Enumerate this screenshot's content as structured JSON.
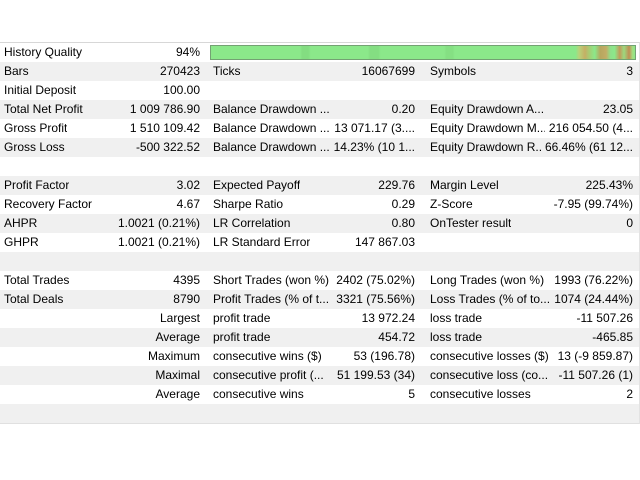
{
  "app": "strategy-tester-backtest-report",
  "accent_colors": {
    "row_stripe": "#f0f0f0",
    "row_white": "#ffffff",
    "text": "#000000",
    "table_border": "#d7d7d7",
    "quality_bar_fill": "#8be88a",
    "quality_bar_streak_dark": "#84de82",
    "quality_bar_streak_tan": "#c5af64",
    "quality_bar_border": "#74a173"
  },
  "report": {
    "rows": [
      {
        "bar": true,
        "cells": [
          "History Quality",
          "94%",
          "",
          "",
          "",
          ""
        ]
      },
      {
        "bar": false,
        "cells": [
          "Bars",
          "270423",
          "Ticks",
          "16067699",
          "Symbols",
          "3"
        ]
      },
      {
        "bar": false,
        "cells": [
          "Initial Deposit",
          "100.00",
          "",
          "",
          "",
          ""
        ]
      },
      {
        "bar": false,
        "cells": [
          "Total Net Profit",
          "1 009 786.90",
          "Balance Drawdown ...",
          "0.20",
          "Equity Drawdown A...",
          "23.05"
        ]
      },
      {
        "bar": false,
        "cells": [
          "Gross Profit",
          "1 510 109.42",
          "Balance Drawdown ...",
          "13 071.17 (3....",
          "Equity Drawdown M...",
          "216 054.50 (4..."
        ]
      },
      {
        "bar": false,
        "cells": [
          "Gross Loss",
          "-500 322.52",
          "Balance Drawdown ...",
          "14.23% (10 1...",
          "Equity Drawdown R...",
          "66.46% (61 12..."
        ]
      },
      {
        "bar": false,
        "cells": [
          "",
          "",
          "",
          "",
          "",
          ""
        ]
      },
      {
        "bar": false,
        "cells": [
          "Profit Factor",
          "3.02",
          "Expected Payoff",
          "229.76",
          "Margin Level",
          "225.43%"
        ]
      },
      {
        "bar": false,
        "cells": [
          "Recovery Factor",
          "4.67",
          "Sharpe Ratio",
          "0.29",
          "Z-Score",
          "-7.95 (99.74%)"
        ]
      },
      {
        "bar": false,
        "cells": [
          "AHPR",
          "1.0021 (0.21%)",
          "LR Correlation",
          "0.80",
          "OnTester result",
          "0"
        ]
      },
      {
        "bar": false,
        "cells": [
          "GHPR",
          "1.0021 (0.21%)",
          "LR Standard Error",
          "147 867.03",
          "",
          ""
        ]
      },
      {
        "bar": false,
        "cells": [
          "",
          "",
          "",
          "",
          "",
          ""
        ]
      },
      {
        "bar": false,
        "cells": [
          "Total Trades",
          "4395",
          "Short Trades (won %)",
          "2402 (75.02%)",
          "Long Trades (won %)",
          "1993 (76.22%)"
        ]
      },
      {
        "bar": false,
        "cells": [
          "Total Deals",
          "8790",
          "Profit Trades (% of t...",
          "3321 (75.56%)",
          "Loss Trades (% of to...",
          "1074 (24.44%)"
        ]
      },
      {
        "bar": false,
        "cells": [
          "",
          "Largest",
          "profit trade",
          "13 972.24",
          "loss trade",
          "-11 507.26"
        ]
      },
      {
        "bar": false,
        "cells": [
          "",
          "Average",
          "profit trade",
          "454.72",
          "loss trade",
          "-465.85"
        ]
      },
      {
        "bar": false,
        "cells": [
          "",
          "Maximum",
          "consecutive wins ($)",
          "53 (196.78)",
          "consecutive losses ($)",
          "13 (-9 859.87)"
        ]
      },
      {
        "bar": false,
        "cells": [
          "",
          "Maximal",
          "consecutive profit (...",
          "51 199.53 (34)",
          "consecutive loss (co...",
          "-11 507.26 (1)"
        ]
      },
      {
        "bar": false,
        "cells": [
          "",
          "Average",
          "consecutive wins",
          "5",
          "consecutive losses",
          "2"
        ]
      },
      {
        "bar": false,
        "cells": [
          "",
          "",
          "",
          "",
          "",
          ""
        ]
      }
    ]
  }
}
